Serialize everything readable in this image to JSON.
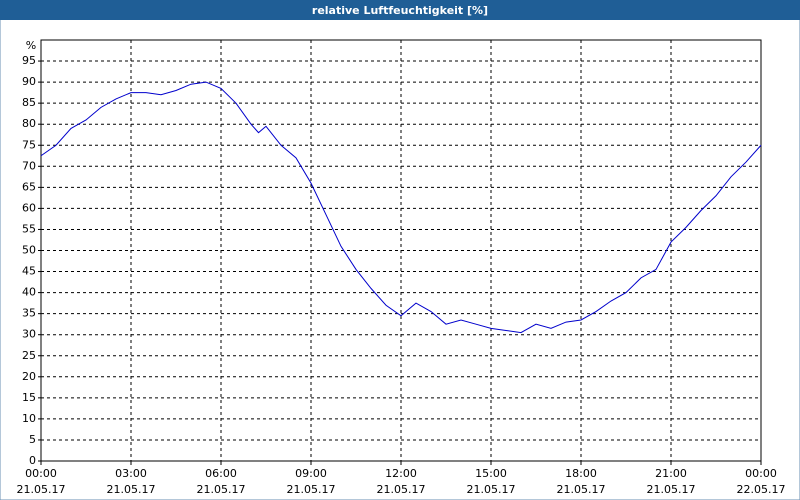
{
  "chart_data": {
    "type": "line",
    "title": "relative Luftfeuchtigkeit [%]",
    "ylabel": "%",
    "x": [
      0,
      0.5,
      1,
      1.5,
      2,
      2.5,
      3,
      3.5,
      4,
      4.5,
      5,
      5.5,
      6,
      6.5,
      7,
      7.25,
      7.5,
      8,
      8.5,
      9,
      9.5,
      10,
      10.5,
      11,
      11.5,
      12,
      12.5,
      13,
      13.5,
      14,
      14.5,
      15,
      15.5,
      16,
      16.5,
      17,
      17.5,
      18,
      18.5,
      19,
      19.5,
      20,
      20.5,
      21,
      21.5,
      22,
      22.5,
      23,
      23.5,
      24
    ],
    "series": [
      {
        "name": "relative Luftfeuchtigkeit",
        "color": "#0000cc",
        "values": [
          72.5,
          75,
          79,
          81,
          84,
          86,
          87.5,
          87.5,
          87,
          88,
          89.5,
          90,
          88.5,
          85,
          80,
          78,
          79.5,
          75,
          72,
          66,
          58.5,
          51,
          45.5,
          41,
          37,
          34.5,
          37.5,
          35.5,
          32.5,
          33.5,
          32.5,
          31.5,
          31,
          30.5,
          32.5,
          31.5,
          33,
          33.5,
          35.5,
          38,
          40,
          43.5,
          45.5,
          52,
          55.5,
          59.5,
          63,
          67.5,
          71,
          75
        ]
      }
    ],
    "xlim": [
      0,
      24
    ],
    "xticks": [
      {
        "value": 0,
        "label": "00:00",
        "date": "21.05.17"
      },
      {
        "value": 3,
        "label": "03:00",
        "date": "21.05.17"
      },
      {
        "value": 6,
        "label": "06:00",
        "date": "21.05.17"
      },
      {
        "value": 9,
        "label": "09:00",
        "date": "21.05.17"
      },
      {
        "value": 12,
        "label": "12:00",
        "date": "21.05.17"
      },
      {
        "value": 15,
        "label": "15:00",
        "date": "21.05.17"
      },
      {
        "value": 18,
        "label": "18:00",
        "date": "21.05.17"
      },
      {
        "value": 21,
        "label": "21:00",
        "date": "21.05.17"
      },
      {
        "value": 24,
        "label": "00:00",
        "date": "22.05.17"
      }
    ],
    "ylim": [
      0,
      100
    ],
    "yticks": [
      0,
      5,
      10,
      15,
      20,
      25,
      30,
      35,
      40,
      45,
      50,
      55,
      60,
      65,
      70,
      75,
      80,
      85,
      90,
      95
    ],
    "grid": true
  }
}
